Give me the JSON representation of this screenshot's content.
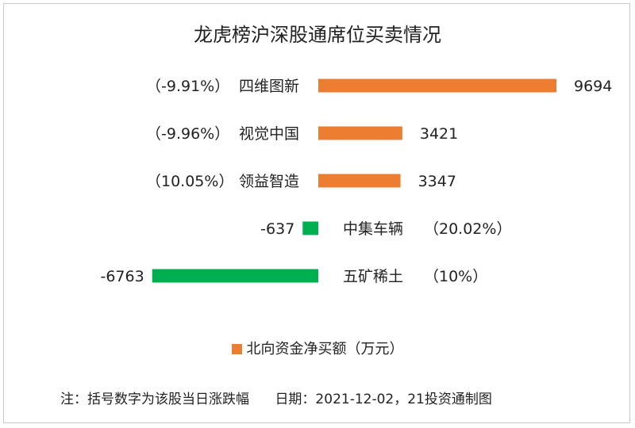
{
  "chart_data": {
    "type": "bar",
    "orientation": "horizontal",
    "title": "龙虎榜沪深股通席位买卖情况",
    "categories": [
      "四维图新",
      "视觉中国",
      "领益智造",
      "中集车辆",
      "五矿稀土"
    ],
    "pct_labels": [
      "（-9.91%）",
      "（-9.96%）",
      "（10.05%）",
      "（20.02%）",
      "（10%）"
    ],
    "series": [
      {
        "name": "北向资金净买额（万元）",
        "values": [
          9694,
          3421,
          3347,
          -637,
          -6763
        ]
      }
    ],
    "value_labels": [
      "9694",
      "3421",
      "3347",
      "-637",
      "-6763"
    ],
    "colors": {
      "positive": "#ED7D31",
      "negative": "#00B050"
    },
    "legend_position": "bottom",
    "grid": false
  },
  "note": "注：括号数字为该股当日涨跌幅",
  "date_source": "日期：2021-12-02，21投资通制图"
}
